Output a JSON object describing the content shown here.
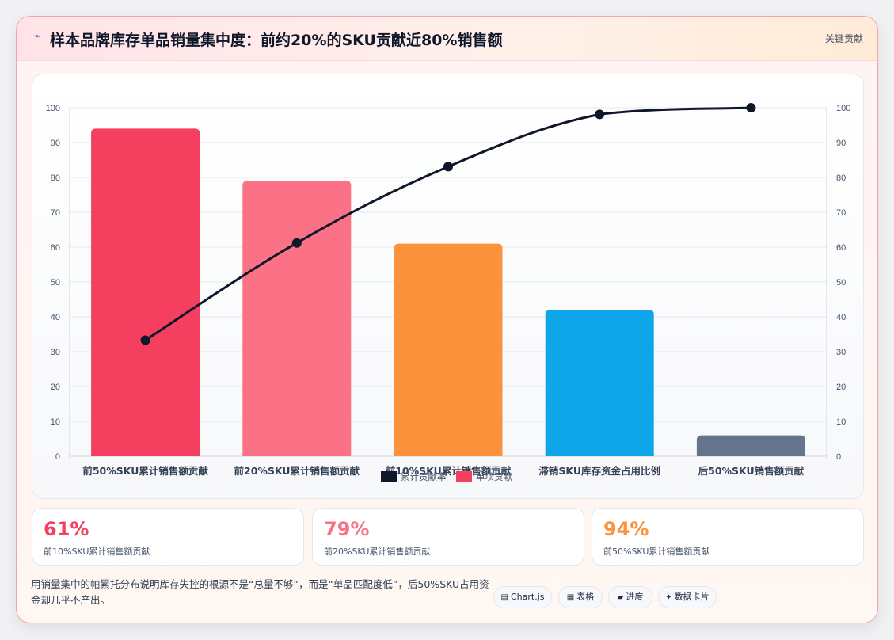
{
  "header": {
    "title": "样本品牌库存单品销量集中度：前约20%的SKU贡献近80%销售额",
    "badge": "关键贡献"
  },
  "chart_data": {
    "type": "bar",
    "categories": [
      "前50%SKU累计销售额贡献",
      "前20%SKU累计销售额贡献",
      "前10%SKU累计销售额贡献",
      "滞销SKU库存资金占用比例",
      "后50%SKU销售额贡献"
    ],
    "series": [
      {
        "name": "单项贡献",
        "type": "bar",
        "values": [
          94,
          79,
          61,
          42,
          6
        ]
      },
      {
        "name": "累计贡献率",
        "type": "line",
        "values": [
          33.3,
          61.2,
          83.1,
          98.1,
          100
        ]
      }
    ],
    "bar_colors": [
      "#f43f5e",
      "#fb7185",
      "#fb923c",
      "#0ea5e9",
      "#64748b"
    ],
    "line_color": "#0f172a",
    "ylim": [
      0,
      100
    ],
    "yticks": [
      0,
      10,
      20,
      30,
      40,
      50,
      60,
      70,
      80,
      90,
      100
    ],
    "y2lim": [
      0,
      100
    ],
    "legend_position": "bottom",
    "grid": true
  },
  "kpis": [
    {
      "value": "61%",
      "label": "前10%SKU累计销售额贡献",
      "color": "#f43f5e"
    },
    {
      "value": "79%",
      "label": "前20%SKU累计销售额贡献",
      "color": "#fb7185"
    },
    {
      "value": "94%",
      "label": "前50%SKU累计销售额贡献",
      "color": "#fb923c"
    }
  ],
  "footer": {
    "text": "用销量集中的帕累托分布说明库存失控的根源不是“总量不够”，而是“单品匹配度低”，后50%SKU占用资金却几乎不产出。"
  },
  "pills": [
    {
      "icon": "chart-icon",
      "label": "Chart.js"
    },
    {
      "icon": "table-icon",
      "label": "表格"
    },
    {
      "icon": "progress-icon",
      "label": "进度"
    },
    {
      "icon": "sparkle-icon",
      "label": "数据卡片"
    }
  ]
}
